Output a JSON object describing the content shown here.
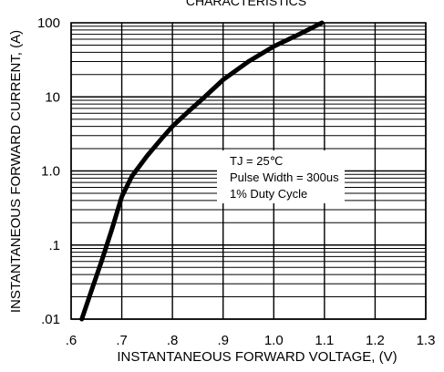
{
  "chart_data": {
    "type": "line",
    "title": "CHARACTERISTICS",
    "xlabel": "INSTANTANEOUS FORWARD VOLTAGE, (V)",
    "ylabel": "INSTANTANEOUS FORWARD CURRENT, (A)",
    "x_scale": "linear",
    "y_scale": "log",
    "xlim": [
      0.6,
      1.3
    ],
    "ylim": [
      0.01,
      100
    ],
    "grid": true,
    "x_ticks": [
      {
        "value": 0.6,
        "label": ".6"
      },
      {
        "value": 0.7,
        "label": ".7"
      },
      {
        "value": 0.8,
        "label": ".8"
      },
      {
        "value": 0.9,
        "label": ".9"
      },
      {
        "value": 1.0,
        "label": "1.0"
      },
      {
        "value": 1.1,
        "label": "1.1"
      },
      {
        "value": 1.2,
        "label": "1.2"
      },
      {
        "value": 1.3,
        "label": "1.3"
      }
    ],
    "y_ticks": [
      {
        "value": 0.01,
        "label": ".01"
      },
      {
        "value": 0.1,
        "label": ".1"
      },
      {
        "value": 1,
        "label": "1.0"
      },
      {
        "value": 10,
        "label": "10"
      },
      {
        "value": 100,
        "label": "100"
      }
    ],
    "annotations": [
      "TJ = 25℃",
      "Pulse Width = 300us",
      "1% Duty Cycle"
    ],
    "series": [
      {
        "x": [
          0.621,
          0.64,
          0.66,
          0.68,
          0.7,
          0.72,
          0.75,
          0.78,
          0.8,
          0.83,
          0.86,
          0.9,
          0.95,
          1.0,
          1.05,
          1.095
        ],
        "y": [
          0.01,
          0.024,
          0.06,
          0.16,
          0.45,
          0.85,
          1.6,
          2.8,
          4.0,
          6.2,
          9.5,
          17,
          30,
          48,
          70,
          100
        ]
      }
    ]
  }
}
